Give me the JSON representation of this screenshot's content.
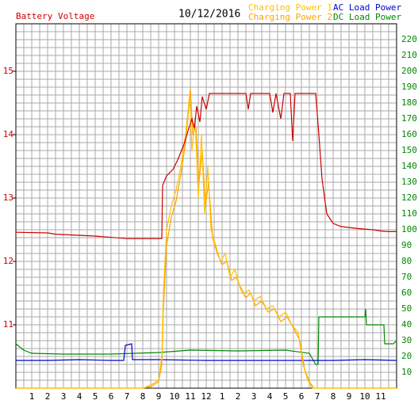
{
  "chart_data": {
    "type": "line",
    "title": "Battery Voltage",
    "subtitle": "10/12/2016",
    "xlim": [
      0,
      24
    ],
    "xticks": [
      1,
      2,
      3,
      4,
      5,
      6,
      7,
      8,
      9,
      10,
      11,
      12,
      {
        "value": 13,
        "label": "1"
      },
      {
        "value": 14,
        "label": "2"
      },
      {
        "value": 15,
        "label": "3"
      },
      {
        "value": 16,
        "label": "4"
      },
      {
        "value": 17,
        "label": "5"
      },
      {
        "value": 18,
        "label": "6"
      },
      {
        "value": 19,
        "label": "7"
      },
      {
        "value": 20,
        "label": "8"
      },
      {
        "value": 21,
        "label": "9"
      },
      {
        "value": 22,
        "label": "10"
      },
      {
        "value": 23,
        "label": "11"
      }
    ],
    "ylim": [
      10,
      15.75
    ],
    "yticks": [
      11,
      12,
      13,
      14,
      15
    ],
    "y2lim": [
      0,
      230
    ],
    "y2ticks": [
      10,
      20,
      30,
      40,
      50,
      60,
      70,
      80,
      90,
      100,
      110,
      120,
      130,
      140,
      150,
      160,
      170,
      180,
      190,
      200,
      210,
      220
    ],
    "grid": true,
    "y_color": "#cc0000",
    "y2_color": "#008800",
    "series": [
      {
        "name": "Battery Voltage",
        "color": "#cc0000",
        "x": [
          0,
          2,
          2.5,
          5,
          7,
          9.2,
          9.25,
          9.5,
          9.9,
          10.2,
          10.6,
          10.9,
          11.1,
          11.25,
          11.4,
          11.6,
          11.75,
          12,
          12.2,
          13,
          14.5,
          14.65,
          14.8,
          16,
          16.2,
          16.4,
          16.7,
          16.9,
          17.3,
          17.45,
          17.6,
          18.9,
          19.1,
          19.3,
          19.6,
          20,
          20.5,
          21.5,
          22.5,
          23,
          23.5,
          24
        ],
        "values": [
          12.46,
          12.45,
          12.43,
          12.4,
          12.36,
          12.36,
          13.2,
          13.35,
          13.45,
          13.6,
          13.85,
          14.1,
          14.25,
          14.1,
          14.45,
          14.2,
          14.6,
          14.4,
          14.65,
          14.65,
          14.65,
          14.4,
          14.65,
          14.65,
          14.35,
          14.65,
          14.25,
          14.65,
          14.65,
          13.9,
          14.65,
          14.65,
          14.0,
          13.3,
          12.75,
          12.6,
          12.55,
          12.52,
          12.5,
          12.48,
          12.47,
          12.47
        ]
      },
      {
        "name": "Charging Power 1",
        "color": "#ffc000",
        "axis": "y2",
        "x": [
          0,
          8,
          8.5,
          9,
          9.2,
          9.3,
          9.5,
          9.8,
          10.1,
          10.4,
          10.7,
          10.95,
          11.1,
          11.3,
          11.5,
          11.7,
          11.9,
          12.1,
          12.3,
          12.6,
          12.9,
          13.2,
          13.5,
          13.8,
          14.1,
          14.4,
          14.7,
          15,
          15.4,
          15.8,
          16.2,
          16.6,
          17,
          17.4,
          17.8,
          18.1,
          18.4,
          18.7,
          24
        ],
        "values": [
          0,
          0,
          2,
          5,
          20,
          60,
          100,
          115,
          125,
          140,
          160,
          185,
          150,
          170,
          120,
          160,
          110,
          140,
          100,
          90,
          80,
          85,
          70,
          75,
          65,
          60,
          62,
          55,
          58,
          50,
          52,
          45,
          48,
          40,
          35,
          15,
          5,
          0,
          0
        ]
      },
      {
        "name": "Charging Power 2",
        "color": "#ffa000",
        "axis": "y2",
        "x": [
          0,
          8,
          8.5,
          9,
          9.2,
          9.3,
          9.5,
          9.8,
          10.1,
          10.4,
          10.7,
          11,
          11.15,
          11.35,
          11.55,
          11.75,
          11.95,
          12.15,
          12.4,
          12.7,
          13,
          13.3,
          13.6,
          13.9,
          14.2,
          14.5,
          14.8,
          15.1,
          15.5,
          15.9,
          16.3,
          16.7,
          17.1,
          17.5,
          17.9,
          18.2,
          18.5,
          18.8,
          24
        ],
        "values": [
          0,
          0,
          1,
          4,
          15,
          50,
          90,
          108,
          118,
          135,
          155,
          189,
          160,
          165,
          130,
          150,
          115,
          130,
          95,
          85,
          78,
          80,
          68,
          70,
          62,
          57,
          60,
          52,
          55,
          48,
          50,
          42,
          45,
          38,
          30,
          12,
          4,
          0,
          0
        ]
      },
      {
        "name": "AC Load Power",
        "color": "#0000cc",
        "axis": "y2",
        "x": [
          0,
          2,
          4,
          6,
          6.8,
          6.9,
          7.3,
          7.35,
          9,
          12,
          15,
          18,
          20,
          22,
          24
        ],
        "values": [
          17.5,
          17.5,
          18,
          17.5,
          17.5,
          27,
          28,
          18,
          18,
          17.5,
          17.5,
          17.5,
          17.5,
          18,
          17.5
        ]
      },
      {
        "name": "DC Load Power",
        "color": "#008800",
        "axis": "y2",
        "x": [
          0,
          0.5,
          1,
          3,
          6,
          9,
          11,
          14,
          17,
          18.5,
          18.9,
          19.05,
          19.1,
          22,
          22.05,
          22.1,
          23.2,
          23.25,
          23.8,
          24
        ],
        "values": [
          28,
          24,
          22,
          21.5,
          21.5,
          22.5,
          24,
          23.5,
          24,
          22,
          15,
          15,
          45,
          45,
          50,
          40,
          40,
          28,
          28,
          30
        ]
      }
    ]
  }
}
